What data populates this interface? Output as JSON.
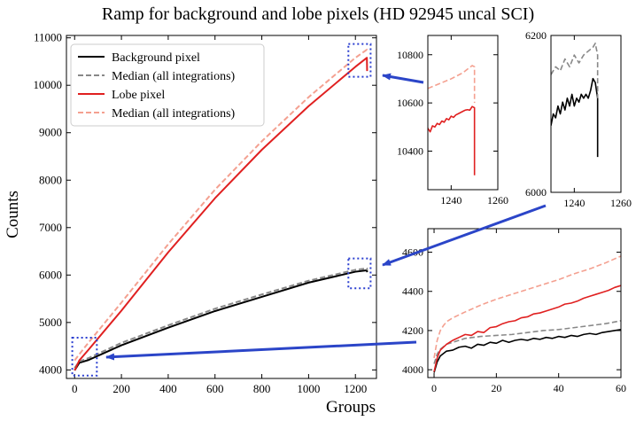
{
  "figure": {
    "title": "Ramp for background and lobe pixels (HD 92945 uncal SCI)"
  },
  "colors": {
    "background": "#000000",
    "background_median": "#888888",
    "lobe": "#e02020",
    "lobe_median": "#f4a090",
    "highlight_box": "#2b3fd0",
    "arrow": "#2b45c8"
  },
  "legend": {
    "placement": "upper-left",
    "entries": [
      {
        "label": "Background pixel",
        "series": "background"
      },
      {
        "label": "Median (all integrations)",
        "series": "background_median"
      },
      {
        "label": "Lobe pixel",
        "series": "lobe"
      },
      {
        "label": "Median (all integrations)",
        "series": "lobe_median"
      }
    ]
  },
  "chart_data": [
    {
      "id": "main",
      "type": "line",
      "xlabel": "Groups",
      "ylabel": "Counts",
      "xlim": [
        -35,
        1290
      ],
      "ylim": [
        3820,
        11050
      ],
      "xticks": [
        0,
        200,
        400,
        600,
        800,
        1000,
        1200
      ],
      "yticks": [
        4000,
        5000,
        6000,
        7000,
        8000,
        9000,
        10000,
        11000
      ],
      "series": [
        {
          "name": "Background pixel",
          "key": "background",
          "dashed": false,
          "x": [
            0,
            20,
            60,
            200,
            400,
            600,
            800,
            1000,
            1200,
            1249,
            1250
          ],
          "y": [
            3990,
            4150,
            4210,
            4520,
            4890,
            5240,
            5540,
            5840,
            6070,
            6100,
            6060
          ]
        },
        {
          "name": "Median (all integrations)",
          "key": "background_median",
          "dashed": true,
          "x": [
            0,
            20,
            60,
            200,
            400,
            600,
            800,
            1000,
            1200,
            1249,
            1250
          ],
          "y": [
            4040,
            4180,
            4250,
            4570,
            4940,
            5290,
            5590,
            5880,
            6110,
            6140,
            6100
          ]
        },
        {
          "name": "Lobe pixel",
          "key": "lobe",
          "dashed": false,
          "x": [
            0,
            20,
            60,
            200,
            400,
            600,
            800,
            1000,
            1200,
            1249,
            1250
          ],
          "y": [
            3990,
            4200,
            4430,
            5250,
            6480,
            7620,
            8640,
            9560,
            10390,
            10580,
            10300
          ]
        },
        {
          "name": "Median (all integrations)",
          "key": "lobe_median",
          "dashed": true,
          "x": [
            0,
            20,
            60,
            200,
            400,
            600,
            800,
            1000,
            1200,
            1249,
            1250
          ],
          "y": [
            4200,
            4330,
            4580,
            5420,
            6650,
            7800,
            8820,
            9750,
            10580,
            10750,
            10720
          ]
        }
      ],
      "highlight_regions": [
        {
          "x": [
            1170,
            1265
          ],
          "y": [
            10180,
            10870
          ]
        },
        {
          "x": [
            1170,
            1265
          ],
          "y": [
            5720,
            6350
          ]
        },
        {
          "x": [
            -10,
            95
          ],
          "y": [
            3880,
            4680
          ]
        }
      ]
    },
    {
      "id": "inset-lobe",
      "type": "line",
      "xlim": [
        1230,
        1260
      ],
      "ylim": [
        10240,
        10880
      ],
      "xticks": [
        1240,
        1260
      ],
      "yticks": [
        10400,
        10600,
        10800
      ],
      "series": [
        {
          "key": "lobe",
          "dashed": false,
          "x": [
            1230,
            1231,
            1232,
            1233,
            1234,
            1235,
            1236,
            1237,
            1238,
            1239,
            1240,
            1241,
            1242,
            1243,
            1244,
            1245,
            1246,
            1247,
            1248,
            1249,
            1250,
            1250
          ],
          "y": [
            10495,
            10480,
            10505,
            10500,
            10515,
            10510,
            10525,
            10520,
            10535,
            10530,
            10545,
            10540,
            10550,
            10555,
            10560,
            10565,
            10570,
            10572,
            10570,
            10585,
            10580,
            10300
          ]
        },
        {
          "key": "lobe_median",
          "dashed": true,
          "x": [
            1230,
            1235,
            1240,
            1245,
            1249,
            1250,
            1250
          ],
          "y": [
            10660,
            10680,
            10700,
            10725,
            10755,
            10750,
            10600
          ]
        }
      ]
    },
    {
      "id": "inset-background",
      "type": "line",
      "xlim": [
        1230,
        1260
      ],
      "ylim": [
        6000,
        6200
      ],
      "xticks": [
        1240,
        1260
      ],
      "yticks": [
        6000,
        6200
      ],
      "series": [
        {
          "key": "background",
          "dashed": false,
          "x": [
            1230,
            1231,
            1232,
            1233,
            1234,
            1235,
            1236,
            1237,
            1238,
            1239,
            1240,
            1241,
            1242,
            1243,
            1244,
            1245,
            1246,
            1247,
            1248,
            1249,
            1250,
            1250
          ],
          "y": [
            6085,
            6100,
            6095,
            6110,
            6100,
            6115,
            6105,
            6120,
            6110,
            6125,
            6110,
            6120,
            6115,
            6125,
            6120,
            6125,
            6120,
            6130,
            6145,
            6140,
            6120,
            6045
          ]
        },
        {
          "key": "background_median",
          "dashed": true,
          "x": [
            1230,
            1232,
            1234,
            1236,
            1238,
            1240,
            1242,
            1244,
            1246,
            1248,
            1249,
            1250,
            1250
          ],
          "y": [
            6150,
            6160,
            6155,
            6170,
            6160,
            6175,
            6165,
            6175,
            6180,
            6185,
            6190,
            6175,
            6120
          ]
        }
      ]
    },
    {
      "id": "inset-early",
      "type": "line",
      "xlim": [
        -2,
        60
      ],
      "ylim": [
        3960,
        4720
      ],
      "xticks": [
        0,
        20,
        40,
        60
      ],
      "yticks": [
        4000,
        4200,
        4400,
        4600
      ],
      "series": [
        {
          "key": "background",
          "dashed": false,
          "x": [
            0,
            1,
            2,
            4,
            6,
            8,
            10,
            12,
            14,
            16,
            18,
            20,
            22,
            24,
            26,
            28,
            30,
            32,
            34,
            36,
            38,
            40,
            42,
            44,
            46,
            48,
            50,
            52,
            54,
            56,
            58,
            60
          ],
          "y": [
            3985,
            4040,
            4070,
            4095,
            4100,
            4115,
            4120,
            4110,
            4130,
            4125,
            4140,
            4135,
            4150,
            4140,
            4150,
            4155,
            4150,
            4160,
            4155,
            4165,
            4160,
            4170,
            4165,
            4175,
            4170,
            4180,
            4185,
            4180,
            4190,
            4195,
            4200,
            4205
          ]
        },
        {
          "key": "background_median",
          "dashed": true,
          "x": [
            0,
            1,
            2,
            4,
            6,
            8,
            10,
            15,
            20,
            25,
            30,
            35,
            40,
            45,
            50,
            55,
            60
          ],
          "y": [
            4030,
            4080,
            4105,
            4130,
            4140,
            4150,
            4160,
            4170,
            4175,
            4180,
            4190,
            4200,
            4205,
            4215,
            4225,
            4235,
            4250
          ]
        },
        {
          "key": "lobe",
          "dashed": false,
          "x": [
            0,
            1,
            2,
            4,
            6,
            8,
            10,
            12,
            14,
            16,
            18,
            20,
            22,
            24,
            26,
            28,
            30,
            32,
            34,
            36,
            38,
            40,
            42,
            44,
            46,
            48,
            50,
            52,
            54,
            56,
            58,
            60
          ],
          "y": [
            3990,
            4060,
            4100,
            4130,
            4150,
            4165,
            4180,
            4175,
            4195,
            4190,
            4215,
            4220,
            4235,
            4245,
            4250,
            4265,
            4270,
            4285,
            4290,
            4300,
            4310,
            4320,
            4335,
            4340,
            4350,
            4365,
            4375,
            4385,
            4395,
            4405,
            4420,
            4430
          ]
        },
        {
          "key": "lobe_median",
          "dashed": true,
          "x": [
            0,
            1,
            2,
            3,
            4,
            6,
            8,
            10,
            15,
            20,
            25,
            30,
            35,
            40,
            45,
            50,
            55,
            60
          ],
          "y": [
            4060,
            4150,
            4200,
            4225,
            4245,
            4265,
            4280,
            4295,
            4330,
            4360,
            4385,
            4410,
            4435,
            4460,
            4490,
            4515,
            4545,
            4580
          ]
        }
      ]
    }
  ]
}
